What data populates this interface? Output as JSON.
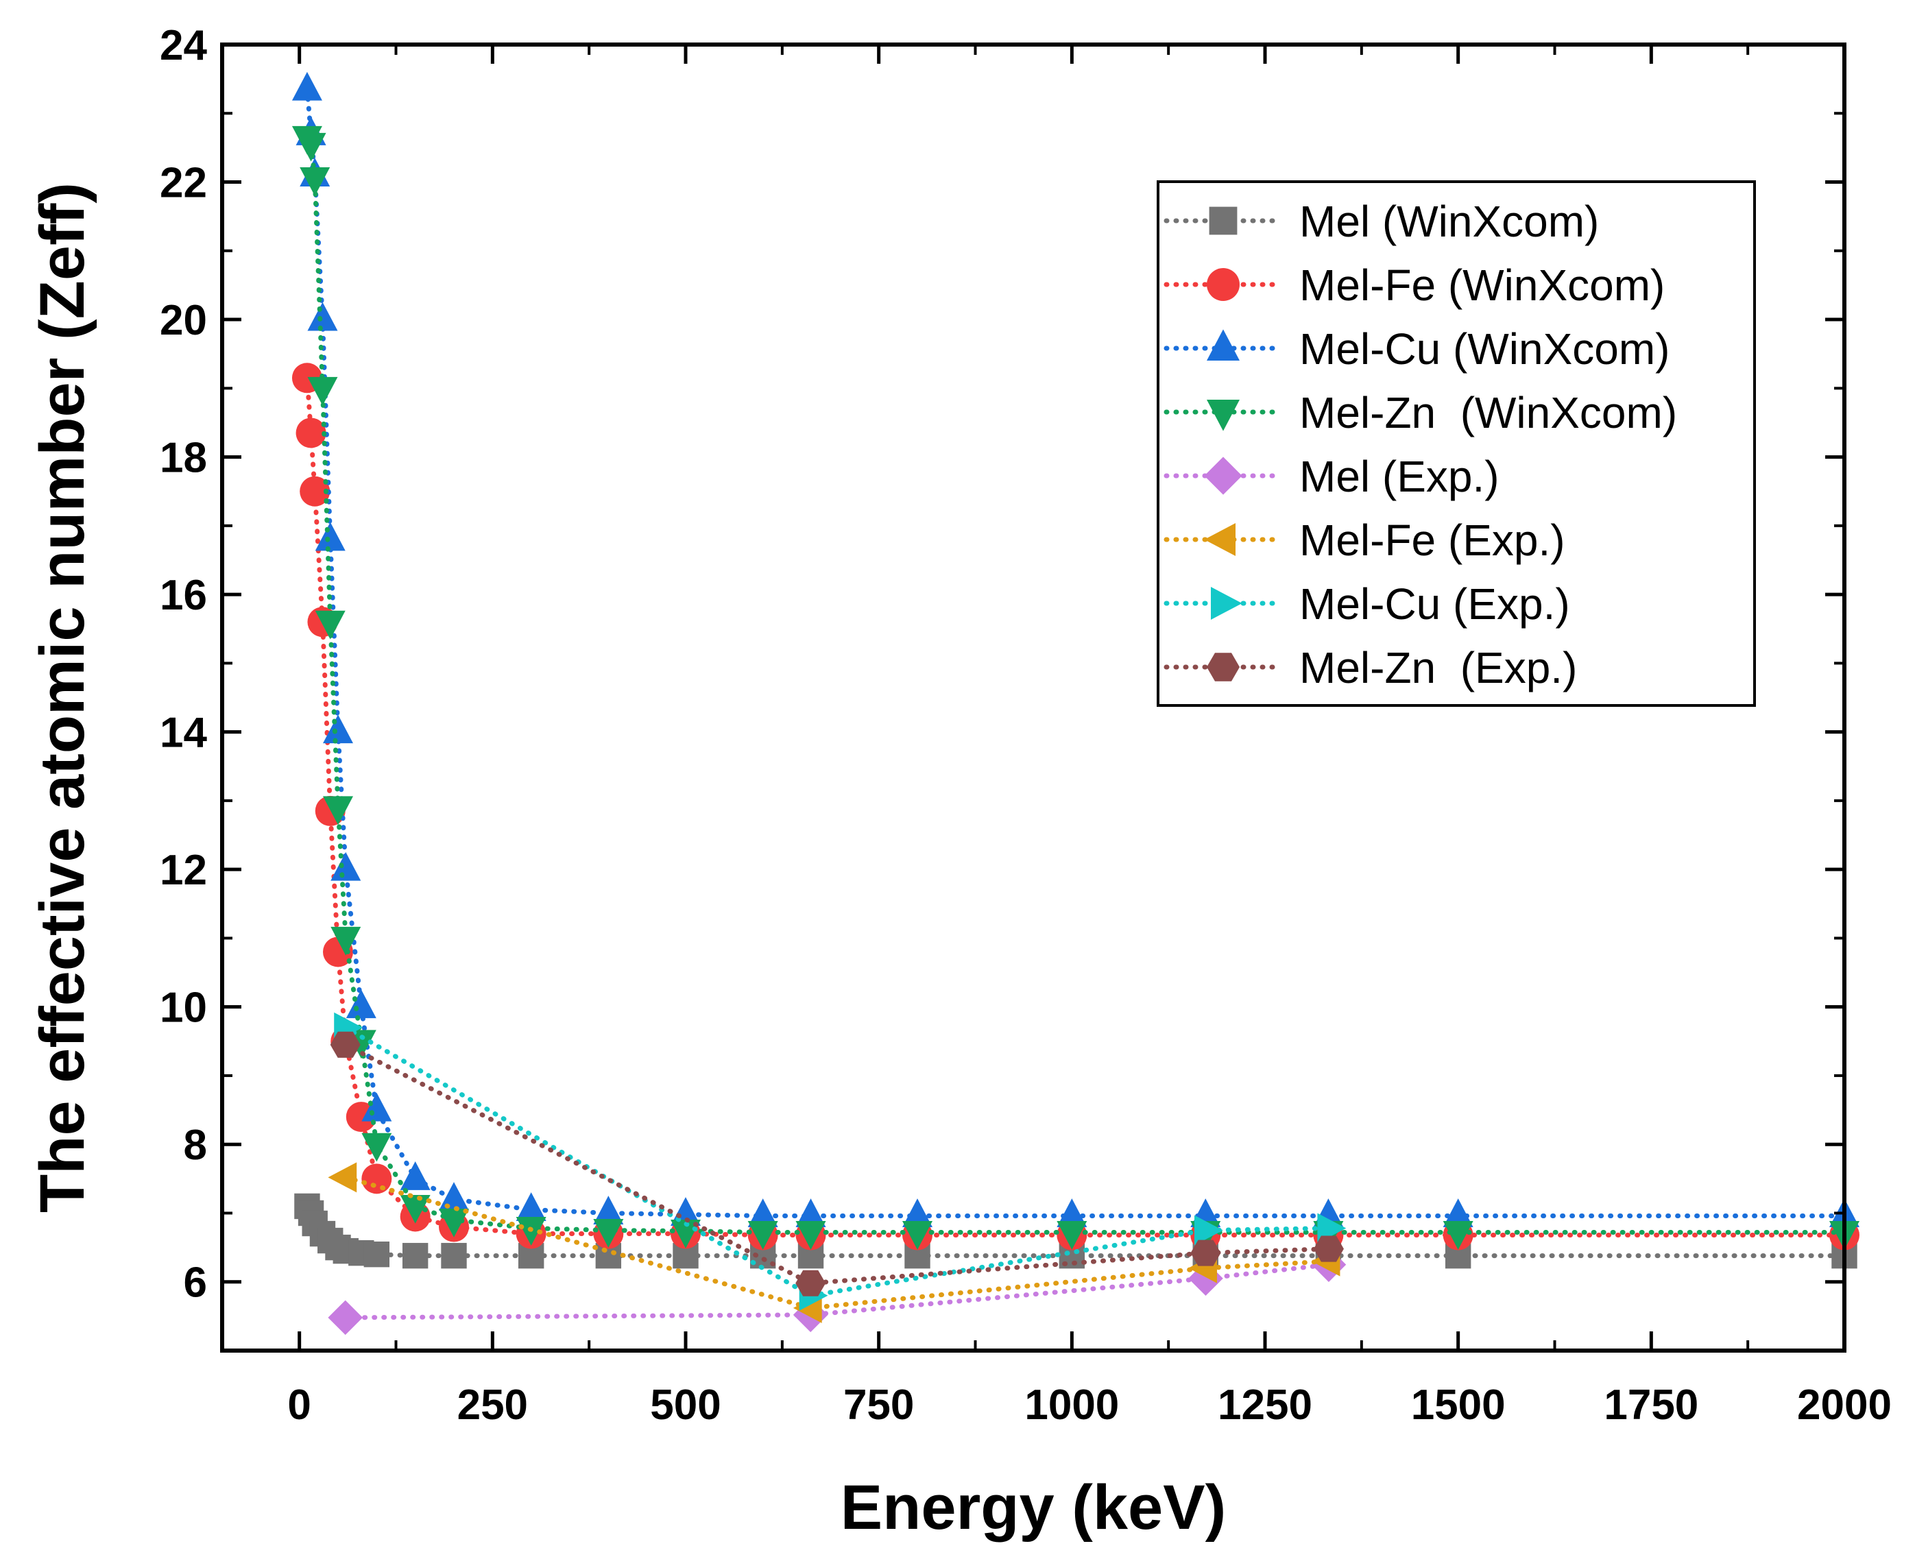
{
  "chart_data": {
    "type": "scatter",
    "title": "",
    "xlabel": "Energy (keV)",
    "ylabel": "The effective atomic number (Zeff)",
    "xlim": [
      -100,
      2000
    ],
    "ylim": [
      5,
      24
    ],
    "xticks": [
      0,
      250,
      500,
      750,
      1000,
      1250,
      1500,
      1750,
      2000
    ],
    "yticks": [
      6,
      8,
      10,
      12,
      14,
      16,
      18,
      20,
      22,
      24
    ],
    "grid": false,
    "legend_position": "top-right",
    "series": [
      {
        "name": "Mel (WinXcom)",
        "color": "#737373",
        "marker": "square",
        "line": "dotted",
        "x": [
          10,
          15,
          20,
          30,
          40,
          50,
          60,
          80,
          100,
          150,
          200,
          300,
          400,
          500,
          600,
          662,
          800,
          1000,
          1173,
          1332,
          1500,
          2000
        ],
        "y": [
          7.1,
          7.0,
          6.85,
          6.7,
          6.6,
          6.5,
          6.45,
          6.42,
          6.4,
          6.38,
          6.38,
          6.38,
          6.38,
          6.38,
          6.38,
          6.38,
          6.38,
          6.38,
          6.38,
          6.38,
          6.38,
          6.38
        ]
      },
      {
        "name": "Mel-Fe (WinXcom)",
        "color": "#f23c3c",
        "marker": "circle",
        "line": "dotted",
        "x": [
          10,
          15,
          20,
          30,
          40,
          50,
          60,
          80,
          100,
          150,
          200,
          300,
          400,
          500,
          600,
          662,
          800,
          1000,
          1173,
          1332,
          1500,
          2000
        ],
        "y": [
          19.15,
          18.35,
          17.5,
          15.6,
          12.85,
          10.8,
          9.5,
          8.4,
          7.5,
          6.95,
          6.8,
          6.7,
          6.7,
          6.7,
          6.68,
          6.68,
          6.68,
          6.68,
          6.68,
          6.68,
          6.68,
          6.68
        ]
      },
      {
        "name": "Mel-Cu (WinXcom)",
        "color": "#1a6fdb",
        "marker": "triangle-up",
        "line": "dotted",
        "x": [
          10,
          15,
          20,
          30,
          40,
          50,
          60,
          80,
          100,
          150,
          200,
          300,
          400,
          500,
          600,
          662,
          800,
          1000,
          1173,
          1332,
          1500,
          2000
        ],
        "y": [
          23.35,
          22.7,
          22.1,
          20.0,
          16.8,
          14.0,
          12.0,
          10.0,
          8.5,
          7.5,
          7.2,
          7.05,
          7.0,
          6.98,
          6.96,
          6.96,
          6.96,
          6.96,
          6.96,
          6.96,
          6.96,
          6.96
        ]
      },
      {
        "name": "Mel-Zn  (WinXcom)",
        "color": "#14a35a",
        "marker": "triangle-down",
        "line": "dotted",
        "x": [
          10,
          15,
          20,
          30,
          40,
          50,
          60,
          80,
          100,
          150,
          200,
          300,
          400,
          500,
          600,
          662,
          800,
          1000,
          1173,
          1332,
          1500,
          2000
        ],
        "y": [
          22.65,
          22.55,
          22.05,
          19.0,
          15.6,
          12.9,
          11.0,
          9.5,
          8.0,
          7.1,
          6.9,
          6.78,
          6.75,
          6.74,
          6.72,
          6.72,
          6.72,
          6.72,
          6.72,
          6.72,
          6.72,
          6.72
        ]
      },
      {
        "name": "Mel (Exp.)",
        "color": "#c77ce0",
        "marker": "diamond",
        "line": "dotted",
        "x": [
          59.5,
          661.7,
          1173.2,
          1332.5
        ],
        "y": [
          5.48,
          5.52,
          6.05,
          6.25
        ]
      },
      {
        "name": "Mel-Fe (Exp.)",
        "color": "#e09c14",
        "marker": "triangle-left",
        "line": "dotted",
        "x": [
          59.5,
          661.7,
          1173.2,
          1332.5
        ],
        "y": [
          7.52,
          5.62,
          6.2,
          6.3
        ]
      },
      {
        "name": "Mel-Cu (Exp.)",
        "color": "#14c8c8",
        "marker": "triangle-right",
        "line": "dotted",
        "x": [
          59.5,
          661.7,
          1173.2,
          1332.5
        ],
        "y": [
          9.7,
          5.8,
          6.75,
          6.78
        ]
      },
      {
        "name": "Mel-Zn  (Exp.)",
        "color": "#8b4a4a",
        "marker": "hexagon",
        "line": "dotted",
        "x": [
          59.5,
          661.7,
          1173.2,
          1332.5
        ],
        "y": [
          9.45,
          5.98,
          6.42,
          6.48
        ]
      }
    ]
  }
}
